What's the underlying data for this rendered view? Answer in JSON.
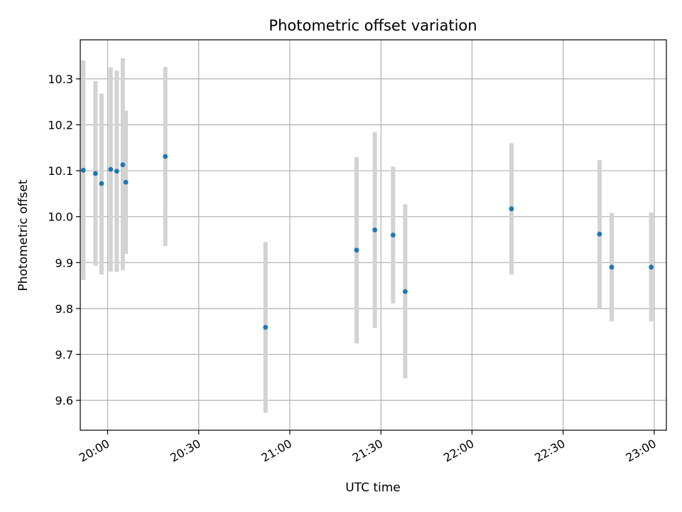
{
  "chart_data": {
    "type": "scatter",
    "title": "Photometric offset variation",
    "xlabel": "UTC time",
    "ylabel": "Photometric offset",
    "grid": true,
    "xlim": [
      "19:51",
      "23:04"
    ],
    "ylim": [
      9.535,
      10.385
    ],
    "x_ticks": [
      "20:00",
      "20:30",
      "21:00",
      "21:30",
      "22:00",
      "22:30",
      "23:00"
    ],
    "y_ticks": [
      "9.6",
      "9.7",
      "9.8",
      "9.9",
      "10.0",
      "10.1",
      "10.2",
      "10.3"
    ],
    "colors": {
      "point": "#1f77b4",
      "errorbar": "#d3d3d3",
      "grid": "#b0b0b0"
    },
    "points": [
      {
        "x": "19:52",
        "y": 10.101,
        "err_low": 9.862,
        "err_high": 10.34
      },
      {
        "x": "19:56",
        "y": 10.094,
        "err_low": 9.893,
        "err_high": 10.295
      },
      {
        "x": "19:58",
        "y": 10.072,
        "err_low": 9.874,
        "err_high": 10.268
      },
      {
        "x": "20:01",
        "y": 10.103,
        "err_low": 9.88,
        "err_high": 10.325
      },
      {
        "x": "20:03",
        "y": 10.099,
        "err_low": 9.88,
        "err_high": 10.318
      },
      {
        "x": "20:05",
        "y": 10.113,
        "err_low": 9.883,
        "err_high": 10.345
      },
      {
        "x": "20:06",
        "y": 10.075,
        "err_low": 9.919,
        "err_high": 10.231
      },
      {
        "x": "20:19",
        "y": 10.131,
        "err_low": 9.936,
        "err_high": 10.326
      },
      {
        "x": "20:52",
        "y": 9.759,
        "err_low": 9.573,
        "err_high": 9.945
      },
      {
        "x": "21:22",
        "y": 9.927,
        "err_low": 9.724,
        "err_high": 10.13
      },
      {
        "x": "21:28",
        "y": 9.971,
        "err_low": 9.758,
        "err_high": 10.184
      },
      {
        "x": "21:34",
        "y": 9.96,
        "err_low": 9.811,
        "err_high": 10.109
      },
      {
        "x": "21:38",
        "y": 9.837,
        "err_low": 9.648,
        "err_high": 10.027
      },
      {
        "x": "22:13",
        "y": 10.017,
        "err_low": 9.874,
        "err_high": 10.16
      },
      {
        "x": "22:42",
        "y": 9.962,
        "err_low": 9.801,
        "err_high": 10.123
      },
      {
        "x": "22:46",
        "y": 9.89,
        "err_low": 9.772,
        "err_high": 10.008
      },
      {
        "x": "22:59",
        "y": 9.89,
        "err_low": 9.772,
        "err_high": 10.009
      }
    ]
  }
}
